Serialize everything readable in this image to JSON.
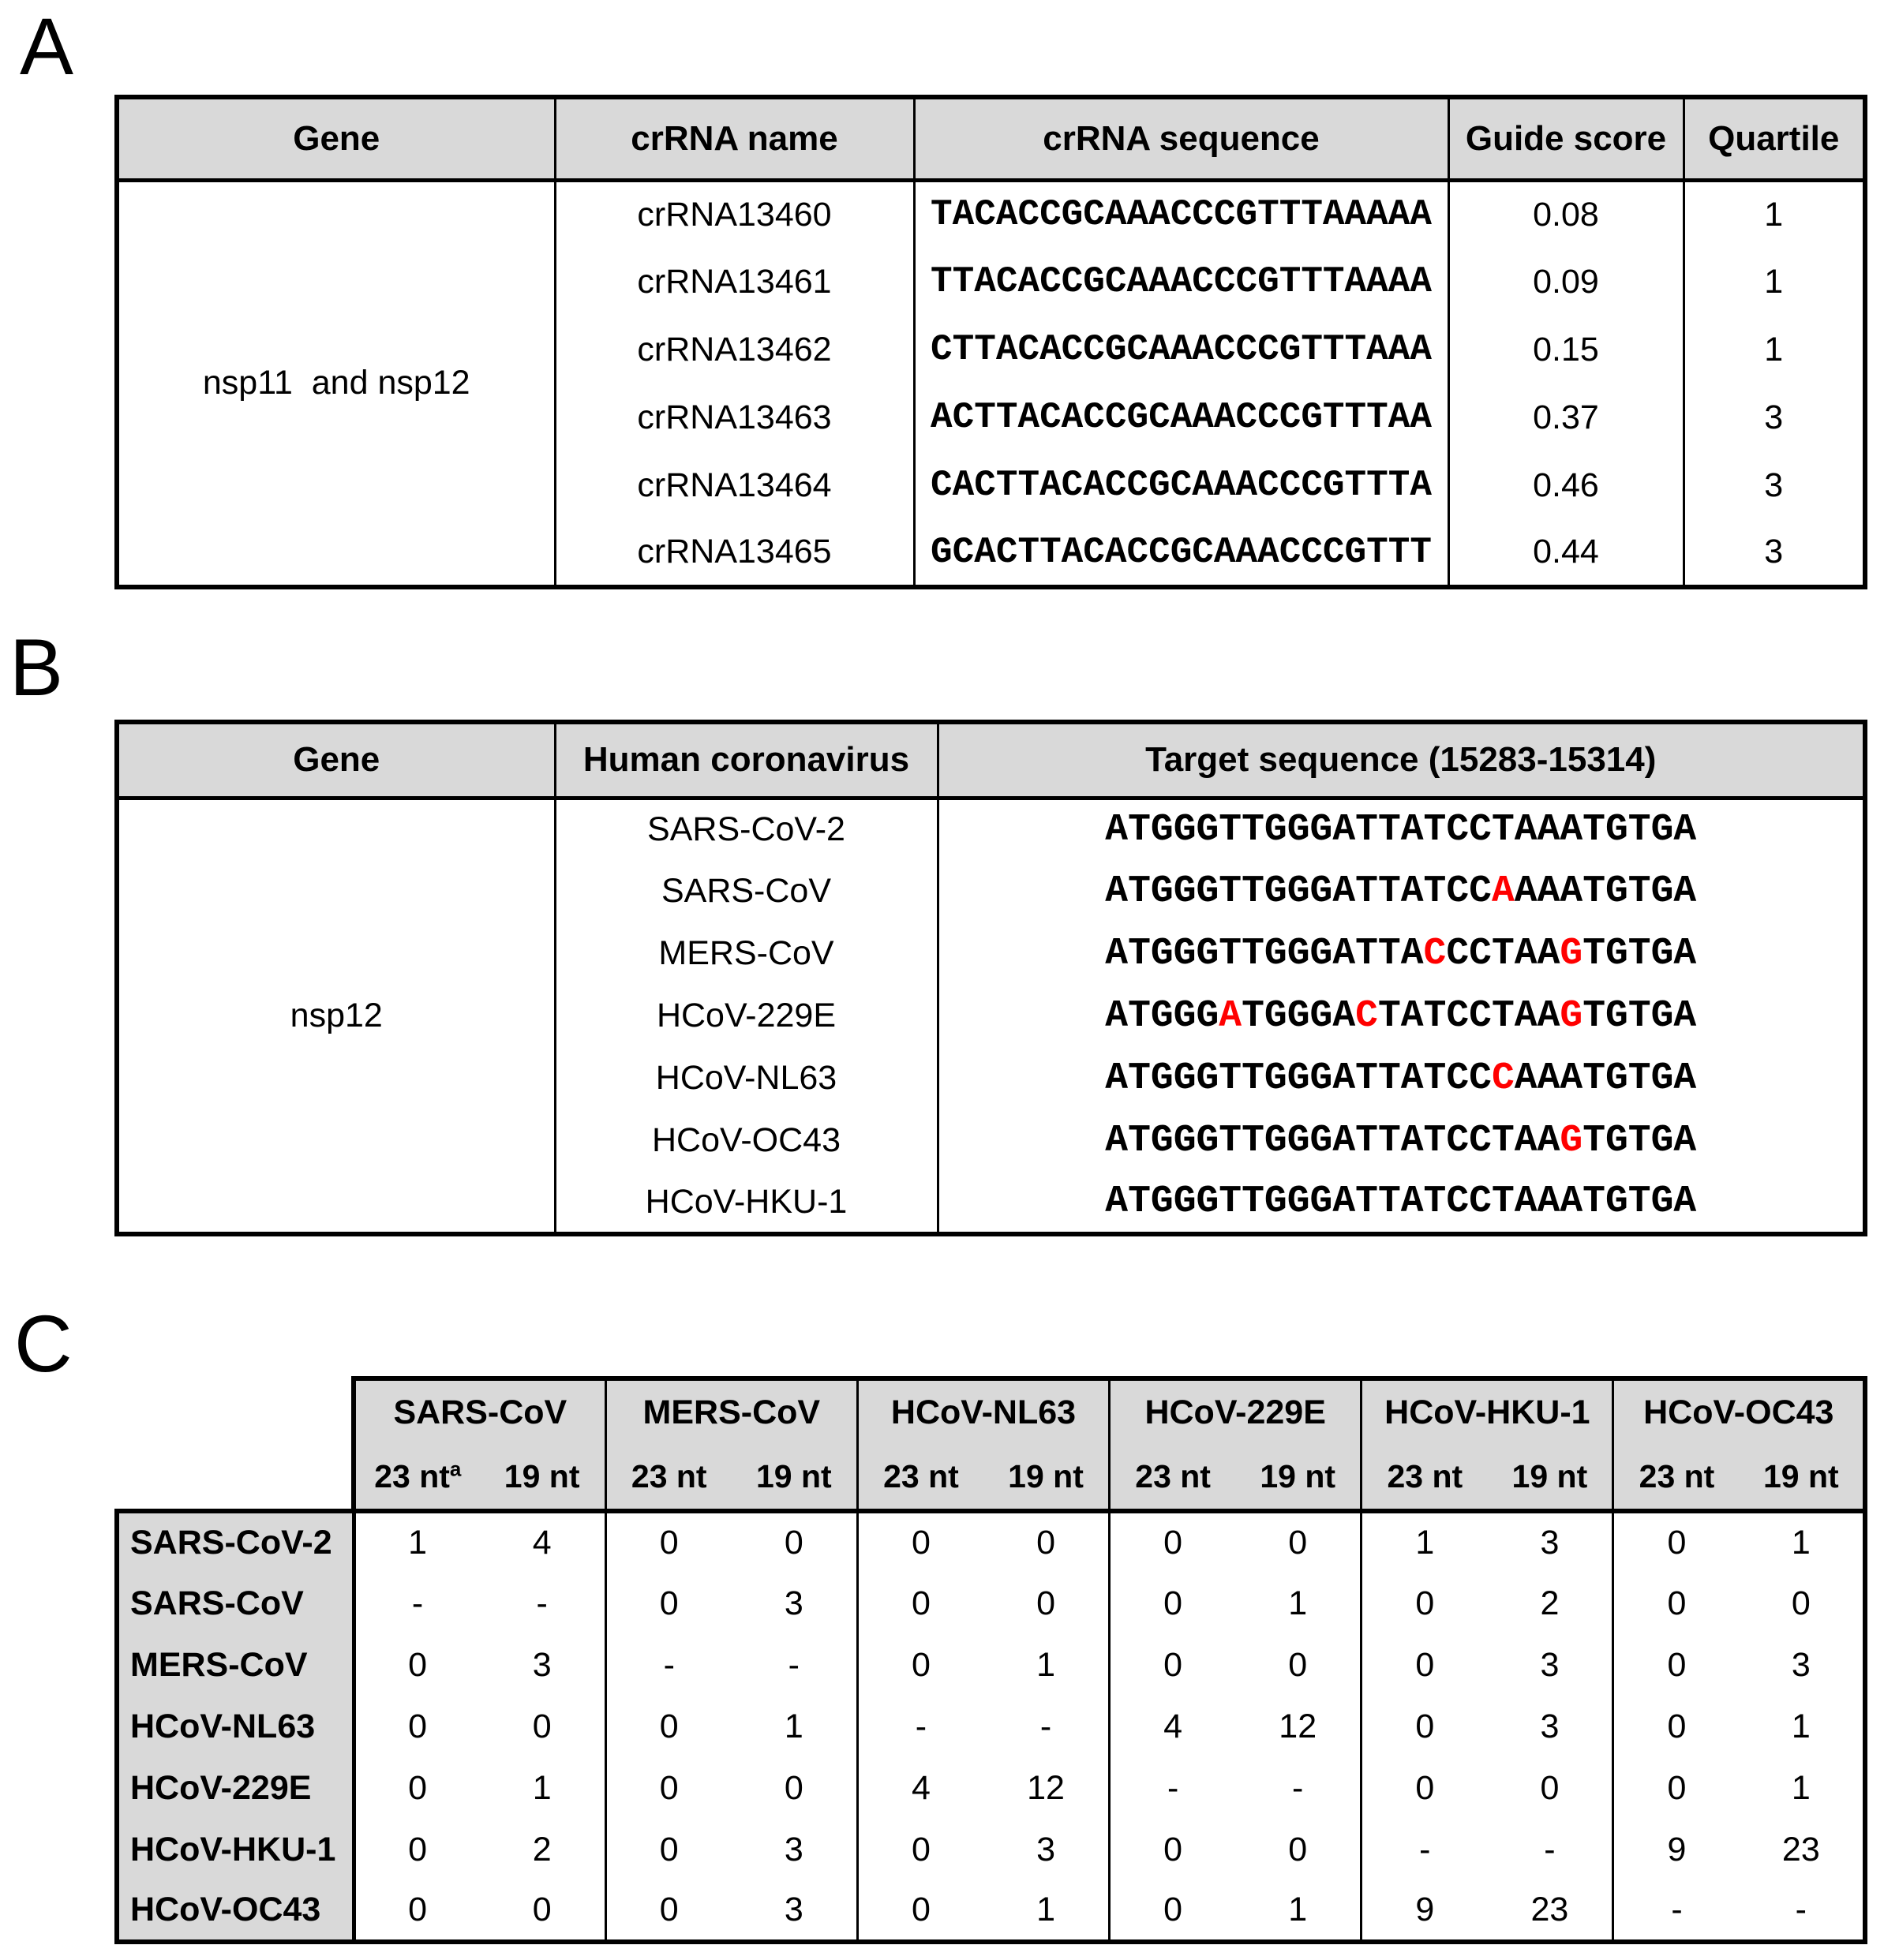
{
  "panels": {
    "a_label": "A",
    "b_label": "B",
    "c_label": "C"
  },
  "colors": {
    "background": "#ffffff",
    "header_bg": "#d9d9d9",
    "border": "#000000",
    "text": "#000000",
    "mismatch_red": "#ff0000"
  },
  "panel_a": {
    "headers": [
      "Gene",
      "crRNA name",
      "crRNA sequence",
      "Guide score",
      "Quartile"
    ],
    "gene_label": "nsp11  and nsp12",
    "rows": [
      {
        "name": "crRNA13460",
        "sequence": "TACACCGCAAACCCGTTTAAAAA",
        "score": "0.08",
        "quartile": "1"
      },
      {
        "name": "crRNA13461",
        "sequence": "TTACACCGCAAACCCGTTTAAAA",
        "score": "0.09",
        "quartile": "1"
      },
      {
        "name": "crRNA13462",
        "sequence": "CTTACACCGCAAACCCGTTTAAA",
        "score": "0.15",
        "quartile": "1"
      },
      {
        "name": "crRNA13463",
        "sequence": "ACTTACACCGCAAACCCGTTTAA",
        "score": "0.37",
        "quartile": "3"
      },
      {
        "name": "crRNA13464",
        "sequence": "CACTTACACCGCAAACCCGTTTA",
        "score": "0.46",
        "quartile": "3"
      },
      {
        "name": "crRNA13465",
        "sequence": "GCACTTACACCGCAAACCCGTTT",
        "score": "0.44",
        "quartile": "3"
      }
    ]
  },
  "panel_b": {
    "headers": [
      "Gene",
      "Human coronavirus",
      "Target sequence (15283-15314)"
    ],
    "gene_label": "nsp12",
    "rows": [
      {
        "virus": "SARS-CoV-2",
        "segments": [
          {
            "text": "ATGGGTTGGGATTATCCTAAATGTGA",
            "red": false
          }
        ]
      },
      {
        "virus": "SARS-CoV",
        "segments": [
          {
            "text": "ATGGGTTGGGATTATCC",
            "red": false
          },
          {
            "text": "A",
            "red": true
          },
          {
            "text": "AAATGTGA",
            "red": false
          }
        ]
      },
      {
        "virus": "MERS-CoV",
        "segments": [
          {
            "text": "ATGGGTTGGGATTA",
            "red": false
          },
          {
            "text": "C",
            "red": true
          },
          {
            "text": "CCTAA",
            "red": false
          },
          {
            "text": "G",
            "red": true
          },
          {
            "text": "TGTGA",
            "red": false
          }
        ]
      },
      {
        "virus": "HCoV-229E",
        "segments": [
          {
            "text": "ATGGG",
            "red": false
          },
          {
            "text": "A",
            "red": true
          },
          {
            "text": "TGGGA",
            "red": false
          },
          {
            "text": "C",
            "red": true
          },
          {
            "text": "TATCCTAA",
            "red": false
          },
          {
            "text": "G",
            "red": true
          },
          {
            "text": "TGTGA",
            "red": false
          }
        ]
      },
      {
        "virus": "HCoV-NL63",
        "segments": [
          {
            "text": "ATGGGTTGGGATTATCC",
            "red": false
          },
          {
            "text": "C",
            "red": true
          },
          {
            "text": "AAATGTGA",
            "red": false
          }
        ]
      },
      {
        "virus": "HCoV-OC43",
        "segments": [
          {
            "text": "ATGGGTTGGGATTATCCTAA",
            "red": false
          },
          {
            "text": "G",
            "red": true
          },
          {
            "text": "TGTGA",
            "red": false
          }
        ]
      },
      {
        "virus": "HCoV-HKU-1",
        "segments": [
          {
            "text": "ATGGGTTGGGATTATCCTAAATGTGA",
            "red": false
          }
        ]
      }
    ]
  },
  "panel_c": {
    "groups": [
      "SARS-CoV",
      "MERS-CoV",
      "HCoV-NL63",
      "HCoV-229E",
      "HCoV-HKU-1",
      "HCoV-OC43"
    ],
    "subcolumn_labels": [
      "23 nt",
      "19 nt"
    ],
    "footnote_mark": "a",
    "rows": [
      {
        "virus": "SARS-CoV-2",
        "values": [
          "1",
          "4",
          "0",
          "0",
          "0",
          "0",
          "0",
          "0",
          "1",
          "3",
          "0",
          "1"
        ]
      },
      {
        "virus": "SARS-CoV",
        "values": [
          "-",
          "-",
          "0",
          "3",
          "0",
          "0",
          "0",
          "1",
          "0",
          "2",
          "0",
          "0"
        ]
      },
      {
        "virus": "MERS-CoV",
        "values": [
          "0",
          "3",
          "-",
          "-",
          "0",
          "1",
          "0",
          "0",
          "0",
          "3",
          "0",
          "3"
        ]
      },
      {
        "virus": "HCoV-NL63",
        "values": [
          "0",
          "0",
          "0",
          "1",
          "-",
          "-",
          "4",
          "12",
          "0",
          "3",
          "0",
          "1"
        ]
      },
      {
        "virus": "HCoV-229E",
        "values": [
          "0",
          "1",
          "0",
          "0",
          "4",
          "12",
          "-",
          "-",
          "0",
          "0",
          "0",
          "1"
        ]
      },
      {
        "virus": "HCoV-HKU-1",
        "values": [
          "0",
          "2",
          "0",
          "3",
          "0",
          "3",
          "0",
          "0",
          "-",
          "-",
          "9",
          "23"
        ]
      },
      {
        "virus": "HCoV-OC43",
        "values": [
          "0",
          "0",
          "0",
          "3",
          "0",
          "1",
          "0",
          "1",
          "9",
          "23",
          "-",
          "-"
        ]
      }
    ]
  }
}
